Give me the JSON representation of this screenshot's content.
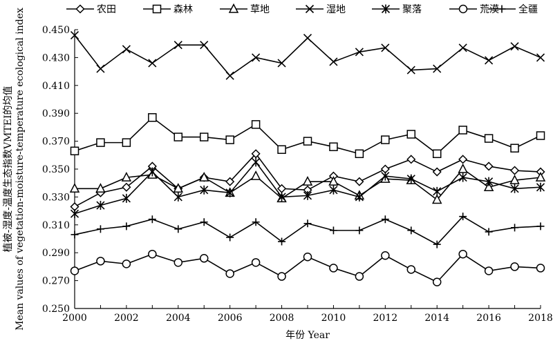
{
  "chart_data": {
    "type": "line",
    "xlabel": "年份 Year",
    "ylabel_cn": "植被-湿度-温度生态指数VMTEI的均值",
    "ylabel_en": "Mean values of vegetation-moisture-temperature ecological index",
    "xlim": [
      2000,
      2018
    ],
    "ylim": [
      0.25,
      0.45
    ],
    "x_ticks": [
      "2000",
      "2002",
      "2004",
      "2006",
      "2008",
      "2010",
      "2012",
      "2014",
      "2016",
      "2018"
    ],
    "y_ticks": [
      "0.250",
      "0.270",
      "0.290",
      "0.310",
      "0.330",
      "0.350",
      "0.370",
      "0.390",
      "0.410",
      "0.430",
      "0.450"
    ],
    "x": [
      2000,
      2001,
      2002,
      2003,
      2004,
      2005,
      2006,
      2007,
      2008,
      2009,
      2010,
      2011,
      2012,
      2013,
      2014,
      2015,
      2016,
      2017,
      2018
    ],
    "legend_position": "top",
    "grid": false,
    "series": [
      {
        "name": "农田",
        "marker": "diamond",
        "values": [
          0.323,
          0.333,
          0.337,
          0.352,
          0.336,
          0.344,
          0.341,
          0.361,
          0.336,
          0.335,
          0.345,
          0.341,
          0.35,
          0.357,
          0.348,
          0.357,
          0.352,
          0.349,
          0.348
        ]
      },
      {
        "name": "森林",
        "marker": "square",
        "values": [
          0.363,
          0.369,
          0.369,
          0.387,
          0.373,
          0.373,
          0.371,
          0.382,
          0.364,
          0.37,
          0.366,
          0.361,
          0.371,
          0.375,
          0.361,
          0.378,
          0.372,
          0.365,
          0.374
        ]
      },
      {
        "name": "草地",
        "marker": "triangle",
        "values": [
          0.336,
          0.336,
          0.344,
          0.346,
          0.336,
          0.344,
          0.333,
          0.345,
          0.329,
          0.341,
          0.341,
          0.331,
          0.343,
          0.342,
          0.328,
          0.35,
          0.337,
          0.342,
          0.344
        ]
      },
      {
        "name": "湿地",
        "marker": "x",
        "values": [
          0.446,
          0.422,
          0.436,
          0.426,
          0.439,
          0.439,
          0.417,
          0.43,
          0.426,
          0.444,
          0.427,
          0.434,
          0.437,
          0.421,
          0.422,
          0.437,
          0.428,
          0.438,
          0.43
        ]
      },
      {
        "name": "聚落",
        "marker": "asterisk",
        "values": [
          0.318,
          0.324,
          0.329,
          0.348,
          0.33,
          0.335,
          0.333,
          0.355,
          0.33,
          0.331,
          0.335,
          0.33,
          0.345,
          0.343,
          0.334,
          0.344,
          0.341,
          0.336,
          0.337
        ]
      },
      {
        "name": "荒漠",
        "marker": "circle",
        "values": [
          0.277,
          0.284,
          0.282,
          0.289,
          0.283,
          0.286,
          0.275,
          0.283,
          0.273,
          0.287,
          0.279,
          0.273,
          0.288,
          0.278,
          0.269,
          0.289,
          0.277,
          0.28,
          0.279
        ]
      },
      {
        "name": "全疆",
        "marker": "plus",
        "values": [
          0.303,
          0.307,
          0.309,
          0.314,
          0.307,
          0.312,
          0.301,
          0.312,
          0.298,
          0.311,
          0.306,
          0.306,
          0.314,
          0.306,
          0.296,
          0.316,
          0.305,
          0.308,
          0.309
        ]
      }
    ]
  }
}
